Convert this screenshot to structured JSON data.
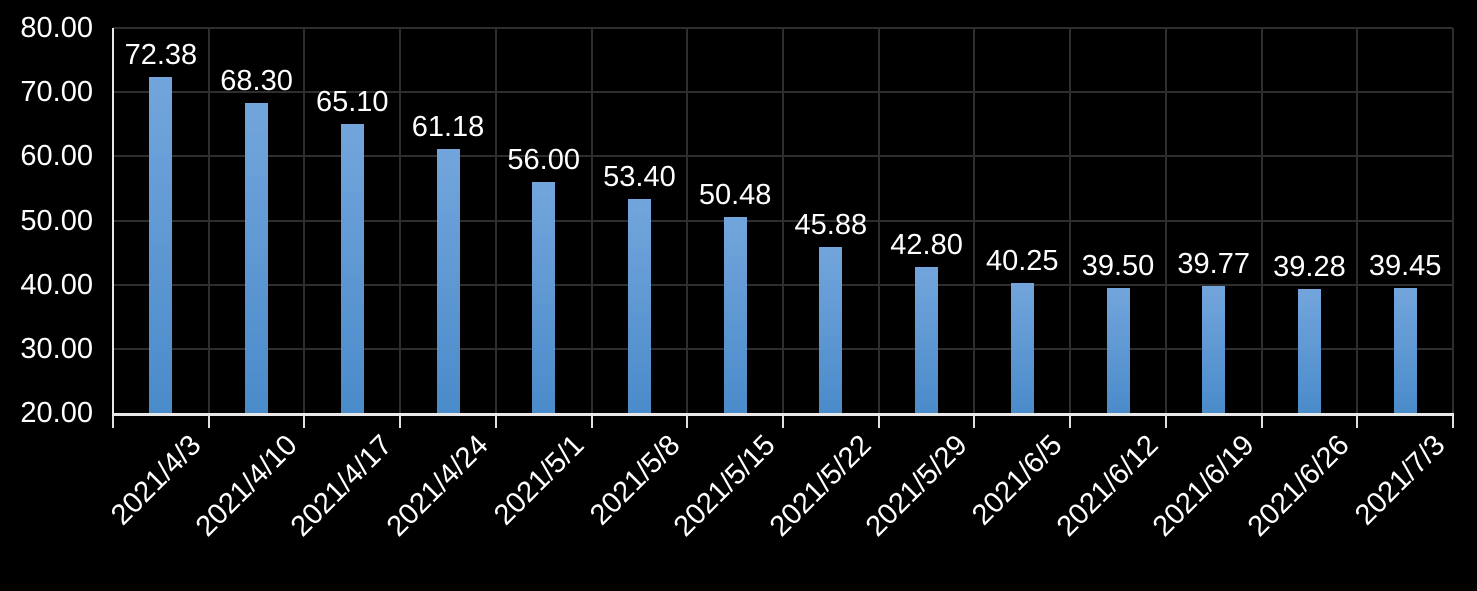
{
  "chart_data": {
    "type": "bar",
    "title": "",
    "xlabel": "",
    "ylabel": "",
    "legend": "none",
    "grid": true,
    "categories": [
      "2021/4/3",
      "2021/4/10",
      "2021/4/17",
      "2021/4/24",
      "2021/5/1",
      "2021/5/8",
      "2021/5/15",
      "2021/5/22",
      "2021/5/29",
      "2021/6/5",
      "2021/6/12",
      "2021/6/19",
      "2021/6/26",
      "2021/7/3"
    ],
    "values": [
      72.38,
      68.3,
      65.1,
      61.18,
      56.0,
      53.4,
      50.48,
      45.88,
      42.8,
      40.25,
      39.5,
      39.77,
      39.28,
      39.45
    ],
    "value_labels": [
      "72.38",
      "68.30",
      "65.10",
      "61.18",
      "56.00",
      "53.40",
      "50.48",
      "45.88",
      "42.80",
      "40.25",
      "39.50",
      "39.77",
      "39.28",
      "39.45"
    ],
    "ylim": [
      20,
      80
    ],
    "y_ticks": [
      {
        "value": 20,
        "label": "20.00"
      },
      {
        "value": 30,
        "label": "30.00"
      },
      {
        "value": 40,
        "label": "40.00"
      },
      {
        "value": 50,
        "label": "50.00"
      },
      {
        "value": 60,
        "label": "60.00"
      },
      {
        "value": 70,
        "label": "70.00"
      },
      {
        "value": 80,
        "label": "80.00"
      }
    ],
    "colors": {
      "background": "#000000",
      "bar_gradient_top": "#73A5DC",
      "bar_gradient_bottom": "#4A8BCA",
      "gridline": "#2E2E2E",
      "axis_line": "#E8E8E8",
      "tick_mark": "#E0E0E0",
      "label_text": "#FFFFFF"
    }
  }
}
